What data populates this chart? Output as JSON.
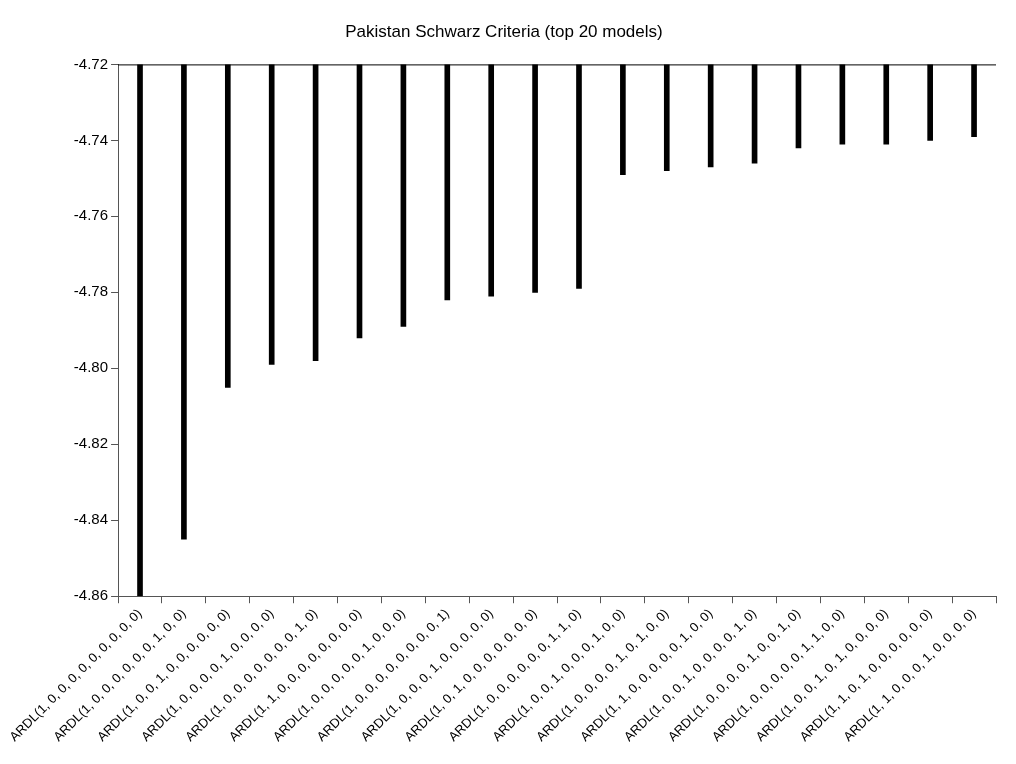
{
  "chart_data": {
    "type": "bar",
    "title": "Pakistan Schwarz Criteria (top 20 models)",
    "categories": [
      "ARDL(1, 0, 0, 0, 0, 0, 0, 0, 0, 0)",
      "ARDL(1, 0, 0, 0, 0, 0, 0, 1, 0, 0)",
      "ARDL(1, 0, 0, 1, 0, 0, 0, 0, 0, 0)",
      "ARDL(1, 0, 0, 0, 0, 1, 0, 0, 0, 0)",
      "ARDL(1, 0, 0, 0, 0, 0, 0, 0, 1, 0)",
      "ARDL(1, 1, 0, 0, 0, 0, 0, 0, 0, 0)",
      "ARDL(1, 0, 0, 0, 0, 0, 1, 0, 0, 0)",
      "ARDL(1, 0, 0, 0, 0, 0, 0, 0, 0, 1)",
      "ARDL(1, 0, 0, 0, 1, 0, 0, 0, 0, 0)",
      "ARDL(1, 0, 1, 0, 0, 0, 0, 0, 0, 0)",
      "ARDL(1, 0, 0, 0, 0, 0, 0, 1, 1, 0)",
      "ARDL(1, 0, 0, 1, 0, 0, 0, 1, 0, 0)",
      "ARDL(1, 0, 0, 0, 0, 1, 0, 1, 0, 0)",
      "ARDL(1, 1, 0, 0, 0, 0, 0, 1, 0, 0)",
      "ARDL(1, 0, 0, 1, 0, 0, 0, 0, 1, 0)",
      "ARDL(1, 0, 0, 0, 0, 1, 0, 0, 1, 0)",
      "ARDL(1, 0, 0, 0, 0, 0, 1, 1, 0, 0)",
      "ARDL(1, 0, 0, 1, 0, 1, 0, 0, 0, 0)",
      "ARDL(1, 1, 0, 1, 0, 0, 0, 0, 0, 0)",
      "ARDL(1, 1, 0, 0, 0, 1, 0, 0, 0, 0)"
    ],
    "values": [
      -4.86,
      -4.845,
      -4.805,
      -4.799,
      -4.798,
      -4.792,
      -4.789,
      -4.782,
      -4.781,
      -4.78,
      -4.779,
      -4.749,
      -4.748,
      -4.747,
      -4.746,
      -4.742,
      -4.741,
      -4.741,
      -4.74,
      -4.739
    ],
    "color": "#000000",
    "ylim": [
      -4.86,
      -4.72
    ],
    "yticks": [
      -4.86,
      -4.84,
      -4.82,
      {
        "value": -4.8,
        "label": "-4.80"
      },
      -4.78,
      -4.76,
      -4.74,
      -4.72
    ],
    "grid": false,
    "legend": false
  }
}
